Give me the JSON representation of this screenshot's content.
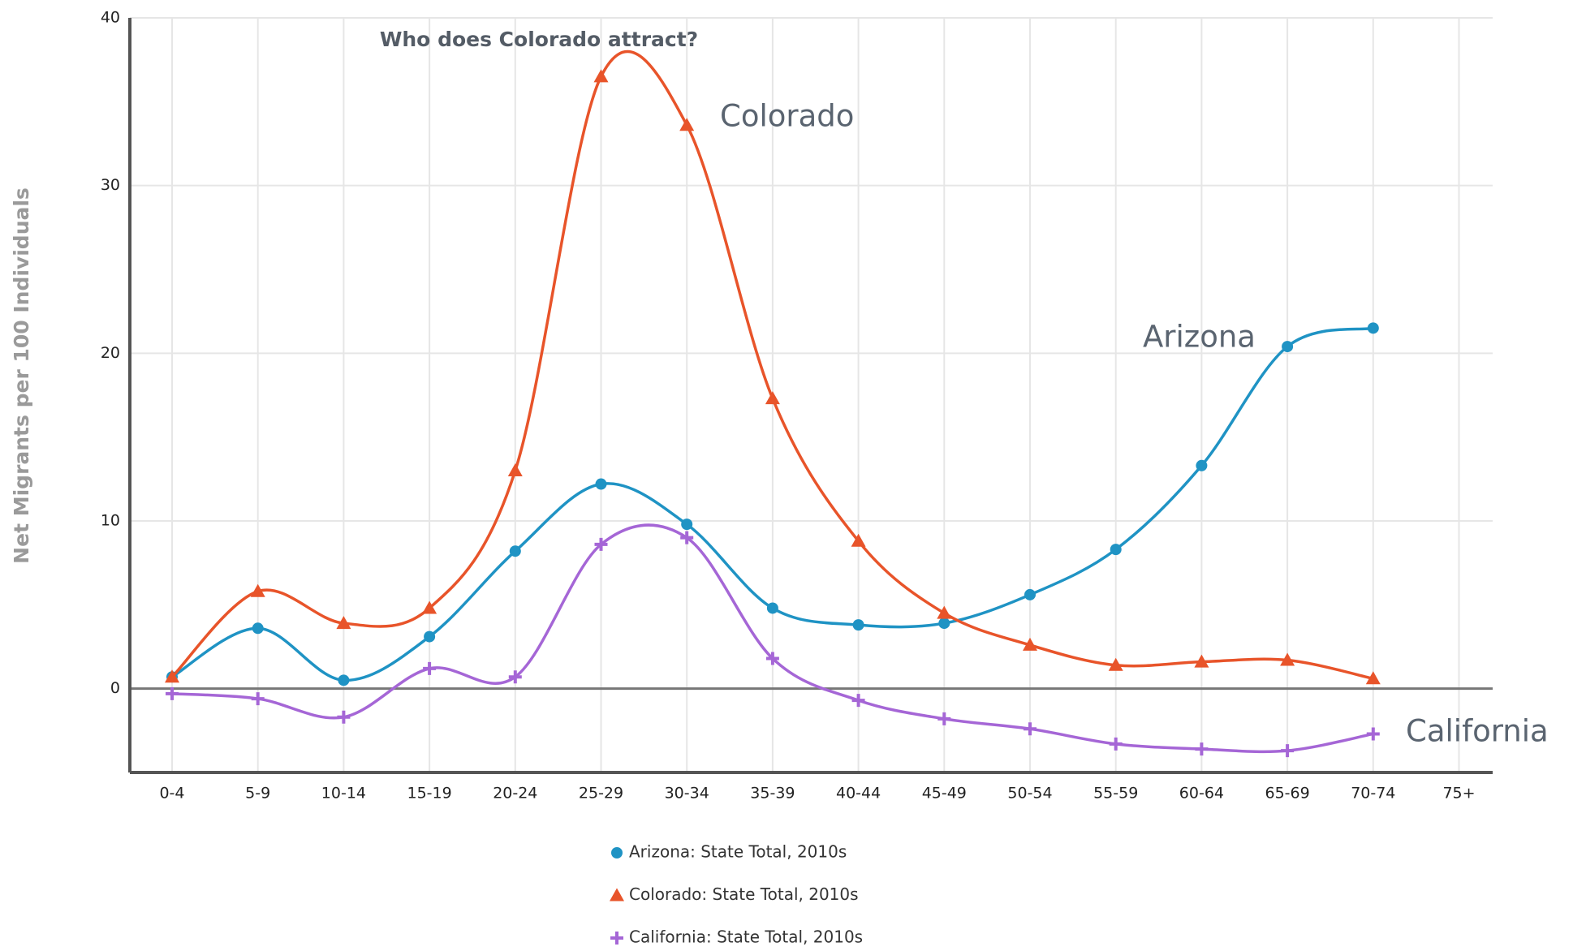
{
  "chart_data": {
    "type": "line",
    "title": "Who does Colorado attract?",
    "y_label": "Net Migrants per 100 Individuals",
    "annotations": [
      "Colorado",
      "Arizona",
      "California"
    ],
    "categories": [
      "0-4",
      "5-9",
      "10-14",
      "15-19",
      "20-24",
      "25-29",
      "30-34",
      "35-39",
      "40-44",
      "45-49",
      "50-54",
      "55-59",
      "60-64",
      "65-69",
      "70-74",
      "75+"
    ],
    "ylim": [
      -5,
      40
    ],
    "yticks": [
      0,
      10,
      20,
      30,
      40
    ],
    "grid": true,
    "series": [
      {
        "name": "Arizona: State Total, 2010s",
        "color": "#1f93c4",
        "marker": "circle",
        "values": [
          0.7,
          3.6,
          0.5,
          3.1,
          8.2,
          12.2,
          9.8,
          4.8,
          3.8,
          3.9,
          5.6,
          8.3,
          13.3,
          20.4,
          21.5,
          null
        ]
      },
      {
        "name": "Colorado: State Total, 2010s",
        "color": "#e8542a",
        "marker": "triangle",
        "values": [
          0.7,
          5.8,
          3.9,
          4.8,
          13.0,
          36.5,
          33.6,
          17.3,
          8.8,
          4.5,
          2.6,
          1.4,
          1.6,
          1.7,
          0.6,
          null
        ]
      },
      {
        "name": "California: State Total, 2010s",
        "color": "#a566d6",
        "marker": "plus",
        "values": [
          -0.3,
          -0.6,
          -1.7,
          1.2,
          0.7,
          8.6,
          9.0,
          1.8,
          -0.7,
          -1.8,
          -2.4,
          -3.3,
          -3.6,
          -3.7,
          -2.7,
          null
        ]
      }
    ]
  }
}
